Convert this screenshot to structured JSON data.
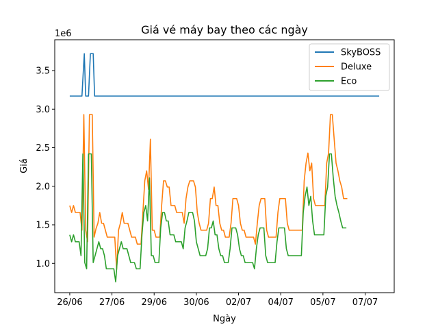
{
  "chart_data": {
    "type": "line",
    "title": "Giá vé máy bay theo các ngày",
    "xlabel": "Ngày",
    "ylabel": "Giá",
    "y_offset_label": "1e6",
    "x_tick_labels": [
      "26/06",
      "27/06",
      "29/06",
      "30/06",
      "02/07",
      "04/07",
      "05/07",
      "07/07"
    ],
    "x_tick_positions": [
      0,
      4.5,
      9,
      13.5,
      18,
      22.5,
      27,
      31.5
    ],
    "xlim": [
      -1.6,
      34.6
    ],
    "y_tick_labels": [
      "1.0",
      "1.5",
      "2.0",
      "2.5",
      "3.0",
      "3.5"
    ],
    "y_tick_values": [
      1.0,
      1.5,
      2.0,
      2.5,
      3.0,
      3.5
    ],
    "ylim": [
      0.62,
      3.9
    ],
    "legend": {
      "position": "top-right"
    },
    "grid": false,
    "series": [
      {
        "name": "SkyBOSS",
        "color": "#1f77b4",
        "points": [
          [
            0,
            3.17
          ],
          [
            1.3,
            3.17
          ],
          [
            1.55,
            3.72
          ],
          [
            1.7,
            3.17
          ],
          [
            2.0,
            3.17
          ],
          [
            2.2,
            3.72
          ],
          [
            2.5,
            3.72
          ],
          [
            2.65,
            3.17
          ],
          [
            33,
            3.17
          ]
        ]
      },
      {
        "name": "Deluxe",
        "color": "#ff7f0e",
        "points": [
          [
            0,
            1.75
          ],
          [
            0.2,
            1.66
          ],
          [
            0.4,
            1.75
          ],
          [
            0.6,
            1.66
          ],
          [
            0.8,
            1.66
          ],
          [
            1.1,
            1.66
          ],
          [
            1.3,
            1.43
          ],
          [
            1.5,
            2.93
          ],
          [
            1.7,
            1.43
          ],
          [
            1.9,
            1.28
          ],
          [
            2.1,
            2.93
          ],
          [
            2.4,
            2.93
          ],
          [
            2.6,
            1.34
          ],
          [
            2.8,
            1.45
          ],
          [
            3.0,
            1.52
          ],
          [
            3.2,
            1.66
          ],
          [
            3.4,
            1.52
          ],
          [
            3.6,
            1.52
          ],
          [
            3.8,
            1.43
          ],
          [
            4.0,
            1.34
          ],
          [
            4.2,
            1.34
          ],
          [
            4.4,
            1.34
          ],
          [
            4.6,
            1.34
          ],
          [
            4.8,
            1.34
          ],
          [
            5.0,
            0.92
          ],
          [
            5.2,
            1.43
          ],
          [
            5.4,
            1.52
          ],
          [
            5.6,
            1.66
          ],
          [
            5.8,
            1.52
          ],
          [
            6.0,
            1.52
          ],
          [
            6.2,
            1.52
          ],
          [
            6.4,
            1.43
          ],
          [
            6.6,
            1.34
          ],
          [
            6.8,
            1.34
          ],
          [
            7.0,
            1.34
          ],
          [
            7.2,
            1.25
          ],
          [
            7.4,
            1.25
          ],
          [
            7.6,
            1.25
          ],
          [
            7.8,
            1.66
          ],
          [
            8.0,
            2.07
          ],
          [
            8.2,
            2.2
          ],
          [
            8.4,
            1.96
          ],
          [
            8.6,
            2.61
          ],
          [
            8.8,
            1.43
          ],
          [
            9.0,
            1.43
          ],
          [
            9.2,
            1.34
          ],
          [
            9.4,
            1.34
          ],
          [
            9.6,
            1.34
          ],
          [
            9.8,
            1.75
          ],
          [
            10.0,
            2.07
          ],
          [
            10.2,
            2.07
          ],
          [
            10.4,
            1.99
          ],
          [
            10.6,
            1.99
          ],
          [
            10.8,
            1.75
          ],
          [
            11.0,
            1.75
          ],
          [
            11.2,
            1.75
          ],
          [
            11.4,
            1.66
          ],
          [
            11.6,
            1.66
          ],
          [
            11.8,
            1.66
          ],
          [
            12.0,
            1.66
          ],
          [
            12.2,
            1.52
          ],
          [
            12.4,
            1.84
          ],
          [
            12.6,
            1.99
          ],
          [
            12.8,
            2.07
          ],
          [
            13.0,
            2.07
          ],
          [
            13.2,
            2.07
          ],
          [
            13.4,
            1.99
          ],
          [
            13.6,
            1.66
          ],
          [
            13.8,
            1.52
          ],
          [
            14.0,
            1.43
          ],
          [
            14.2,
            1.43
          ],
          [
            14.4,
            1.43
          ],
          [
            14.6,
            1.43
          ],
          [
            14.8,
            1.52
          ],
          [
            15.0,
            1.84
          ],
          [
            15.2,
            1.84
          ],
          [
            15.4,
            1.99
          ],
          [
            15.6,
            1.75
          ],
          [
            15.8,
            1.75
          ],
          [
            16.0,
            1.52
          ],
          [
            16.2,
            1.43
          ],
          [
            16.4,
            1.43
          ],
          [
            16.6,
            1.34
          ],
          [
            16.8,
            1.34
          ],
          [
            17.0,
            1.34
          ],
          [
            17.2,
            1.52
          ],
          [
            17.4,
            1.84
          ],
          [
            17.6,
            1.84
          ],
          [
            17.8,
            1.84
          ],
          [
            18.0,
            1.75
          ],
          [
            18.2,
            1.52
          ],
          [
            18.4,
            1.43
          ],
          [
            18.6,
            1.43
          ],
          [
            18.8,
            1.34
          ],
          [
            19.0,
            1.34
          ],
          [
            19.2,
            1.34
          ],
          [
            19.4,
            1.34
          ],
          [
            19.6,
            1.34
          ],
          [
            19.8,
            1.25
          ],
          [
            20.0,
            1.52
          ],
          [
            20.2,
            1.75
          ],
          [
            20.4,
            1.84
          ],
          [
            20.6,
            1.84
          ],
          [
            20.8,
            1.84
          ],
          [
            21.0,
            1.43
          ],
          [
            21.2,
            1.34
          ],
          [
            21.4,
            1.34
          ],
          [
            21.6,
            1.34
          ],
          [
            21.8,
            1.34
          ],
          [
            22.0,
            1.34
          ],
          [
            22.2,
            1.66
          ],
          [
            22.4,
            1.84
          ],
          [
            22.6,
            1.84
          ],
          [
            22.8,
            1.84
          ],
          [
            23.0,
            1.84
          ],
          [
            23.2,
            1.52
          ],
          [
            23.4,
            1.43
          ],
          [
            23.6,
            1.43
          ],
          [
            23.8,
            1.43
          ],
          [
            24.0,
            1.43
          ],
          [
            24.2,
            1.43
          ],
          [
            24.4,
            1.43
          ],
          [
            24.6,
            1.43
          ],
          [
            24.8,
            1.43
          ],
          [
            25.0,
            2.07
          ],
          [
            25.2,
            2.3
          ],
          [
            25.4,
            2.43
          ],
          [
            25.6,
            2.2
          ],
          [
            25.8,
            2.3
          ],
          [
            26.0,
            1.84
          ],
          [
            26.2,
            1.75
          ],
          [
            26.4,
            1.75
          ],
          [
            26.6,
            1.75
          ],
          [
            26.8,
            1.75
          ],
          [
            27.0,
            1.75
          ],
          [
            27.2,
            1.75
          ],
          [
            27.4,
            2.3
          ],
          [
            27.6,
            2.43
          ],
          [
            27.8,
            2.93
          ],
          [
            28.0,
            2.93
          ],
          [
            28.2,
            2.61
          ],
          [
            28.4,
            2.3
          ],
          [
            28.6,
            2.2
          ],
          [
            28.8,
            2.07
          ],
          [
            29.0,
            1.99
          ],
          [
            29.2,
            1.84
          ],
          [
            29.4,
            1.84
          ],
          [
            29.6,
            1.84
          ]
        ]
      },
      {
        "name": "Eco",
        "color": "#2ca02c",
        "points": [
          [
            0,
            1.37
          ],
          [
            0.2,
            1.28
          ],
          [
            0.4,
            1.37
          ],
          [
            0.6,
            1.28
          ],
          [
            0.8,
            1.28
          ],
          [
            1.0,
            1.28
          ],
          [
            1.2,
            1.1
          ],
          [
            1.4,
            2.42
          ],
          [
            1.6,
            1.01
          ],
          [
            1.8,
            0.93
          ],
          [
            2.0,
            2.42
          ],
          [
            2.3,
            2.42
          ],
          [
            2.5,
            1.01
          ],
          [
            2.7,
            1.1
          ],
          [
            2.9,
            1.19
          ],
          [
            3.1,
            1.28
          ],
          [
            3.3,
            1.19
          ],
          [
            3.5,
            1.19
          ],
          [
            3.7,
            1.1
          ],
          [
            3.9,
            0.93
          ],
          [
            4.1,
            0.93
          ],
          [
            4.3,
            0.93
          ],
          [
            4.5,
            0.93
          ],
          [
            4.7,
            0.93
          ],
          [
            4.9,
            0.76
          ],
          [
            5.1,
            1.1
          ],
          [
            5.3,
            1.19
          ],
          [
            5.5,
            1.28
          ],
          [
            5.7,
            1.19
          ],
          [
            5.9,
            1.19
          ],
          [
            6.1,
            1.19
          ],
          [
            6.3,
            1.1
          ],
          [
            6.5,
            1.01
          ],
          [
            6.7,
            1.01
          ],
          [
            6.9,
            1.01
          ],
          [
            7.1,
            0.93
          ],
          [
            7.3,
            0.93
          ],
          [
            7.5,
            0.93
          ],
          [
            7.7,
            1.37
          ],
          [
            7.9,
            1.66
          ],
          [
            8.1,
            1.75
          ],
          [
            8.3,
            1.55
          ],
          [
            8.5,
            2.11
          ],
          [
            8.7,
            1.1
          ],
          [
            8.9,
            1.1
          ],
          [
            9.1,
            1.01
          ],
          [
            9.3,
            1.01
          ],
          [
            9.5,
            1.01
          ],
          [
            9.7,
            1.46
          ],
          [
            9.9,
            1.66
          ],
          [
            10.1,
            1.66
          ],
          [
            10.3,
            1.55
          ],
          [
            10.5,
            1.55
          ],
          [
            10.7,
            1.37
          ],
          [
            10.9,
            1.37
          ],
          [
            11.1,
            1.37
          ],
          [
            11.3,
            1.28
          ],
          [
            11.5,
            1.28
          ],
          [
            11.7,
            1.28
          ],
          [
            11.9,
            1.28
          ],
          [
            12.1,
            1.19
          ],
          [
            12.3,
            1.46
          ],
          [
            12.5,
            1.55
          ],
          [
            12.7,
            1.66
          ],
          [
            12.9,
            1.66
          ],
          [
            13.1,
            1.66
          ],
          [
            13.3,
            1.55
          ],
          [
            13.5,
            1.28
          ],
          [
            13.7,
            1.19
          ],
          [
            13.9,
            1.1
          ],
          [
            14.1,
            1.1
          ],
          [
            14.3,
            1.1
          ],
          [
            14.5,
            1.1
          ],
          [
            14.7,
            1.19
          ],
          [
            14.9,
            1.46
          ],
          [
            15.1,
            1.46
          ],
          [
            15.3,
            1.55
          ],
          [
            15.5,
            1.37
          ],
          [
            15.7,
            1.37
          ],
          [
            15.9,
            1.19
          ],
          [
            16.1,
            1.1
          ],
          [
            16.3,
            1.1
          ],
          [
            16.5,
            1.01
          ],
          [
            16.7,
            1.01
          ],
          [
            16.9,
            1.01
          ],
          [
            17.1,
            1.19
          ],
          [
            17.3,
            1.46
          ],
          [
            17.5,
            1.46
          ],
          [
            17.7,
            1.46
          ],
          [
            17.9,
            1.37
          ],
          [
            18.1,
            1.19
          ],
          [
            18.3,
            1.1
          ],
          [
            18.5,
            1.1
          ],
          [
            18.7,
            1.01
          ],
          [
            18.9,
            1.01
          ],
          [
            19.1,
            1.01
          ],
          [
            19.3,
            1.01
          ],
          [
            19.5,
            1.01
          ],
          [
            19.7,
            0.93
          ],
          [
            19.9,
            1.19
          ],
          [
            20.1,
            1.37
          ],
          [
            20.3,
            1.46
          ],
          [
            20.5,
            1.46
          ],
          [
            20.7,
            1.46
          ],
          [
            20.9,
            1.1
          ],
          [
            21.1,
            1.01
          ],
          [
            21.3,
            1.01
          ],
          [
            21.5,
            1.01
          ],
          [
            21.7,
            1.01
          ],
          [
            21.9,
            1.01
          ],
          [
            22.1,
            1.28
          ],
          [
            22.3,
            1.46
          ],
          [
            22.5,
            1.46
          ],
          [
            22.7,
            1.46
          ],
          [
            22.9,
            1.46
          ],
          [
            23.1,
            1.19
          ],
          [
            23.3,
            1.1
          ],
          [
            23.5,
            1.1
          ],
          [
            23.7,
            1.1
          ],
          [
            23.9,
            1.1
          ],
          [
            24.1,
            1.1
          ],
          [
            24.3,
            1.1
          ],
          [
            24.5,
            1.1
          ],
          [
            24.7,
            1.1
          ],
          [
            24.9,
            1.66
          ],
          [
            25.1,
            1.87
          ],
          [
            25.3,
            1.99
          ],
          [
            25.5,
            1.75
          ],
          [
            25.7,
            1.87
          ],
          [
            25.9,
            1.55
          ],
          [
            26.1,
            1.37
          ],
          [
            26.3,
            1.37
          ],
          [
            26.5,
            1.37
          ],
          [
            26.7,
            1.37
          ],
          [
            26.9,
            1.37
          ],
          [
            27.1,
            1.37
          ],
          [
            27.3,
            1.87
          ],
          [
            27.5,
            1.99
          ],
          [
            27.7,
            2.42
          ],
          [
            27.9,
            2.42
          ],
          [
            28.1,
            2.11
          ],
          [
            28.3,
            1.87
          ],
          [
            28.5,
            1.75
          ],
          [
            28.7,
            1.66
          ],
          [
            28.9,
            1.55
          ],
          [
            29.1,
            1.46
          ],
          [
            29.3,
            1.46
          ],
          [
            29.5,
            1.46
          ]
        ]
      }
    ]
  }
}
